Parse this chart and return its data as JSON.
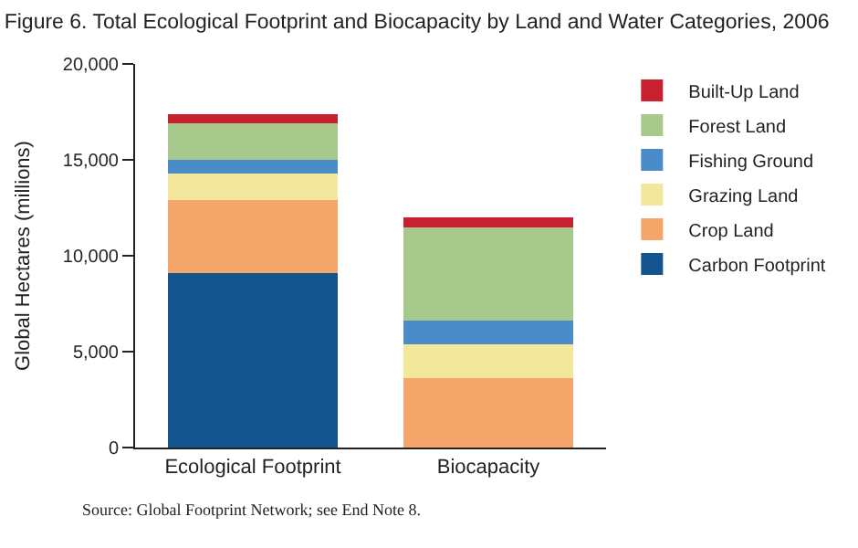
{
  "chart_data": {
    "type": "bar",
    "stacked": true,
    "title": "Figure 6. Total Ecological Footprint and Biocapacity by Land and Water Categories, 2006",
    "ylabel": "Global Hectares (millions)",
    "categories": [
      "Ecological Footprint",
      "Biocapacity"
    ],
    "series": [
      {
        "name": "Carbon Footprint",
        "color": "#13548f",
        "values": [
          9100,
          0
        ]
      },
      {
        "name": "Crop Land",
        "color": "#f4a56a",
        "values": [
          3800,
          3600
        ]
      },
      {
        "name": "Grazing Land",
        "color": "#f3e79c",
        "values": [
          1400,
          1800
        ]
      },
      {
        "name": "Fishing Ground",
        "color": "#4a8cc8",
        "values": [
          700,
          1200
        ]
      },
      {
        "name": "Forest Land",
        "color": "#a8c98c",
        "values": [
          1900,
          4900
        ]
      },
      {
        "name": "Built-Up Land",
        "color": "#c8202f",
        "values": [
          500,
          500
        ]
      }
    ],
    "ylim": [
      0,
      20000
    ],
    "yticks": [
      0,
      {
        "value": 5000,
        "label": "5,000"
      },
      {
        "value": 10000,
        "label": "10,000"
      },
      {
        "value": 15000,
        "label": "15,000"
      },
      {
        "value": 20000,
        "label": "20,000"
      }
    ],
    "legend": "top right",
    "annotations": [
      "Source: Global Footprint Network; see End Note 8."
    ]
  }
}
